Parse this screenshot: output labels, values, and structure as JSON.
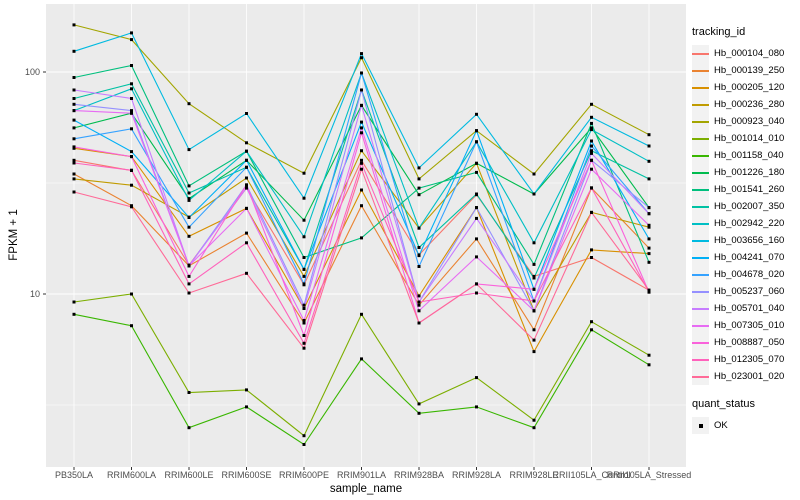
{
  "chart": {
    "y_axis_title": "FPKM + 1",
    "x_axis_title": "sample_name",
    "legend_title": "tracking_id",
    "point_legend_title": "quant_status",
    "point_legend_label": "OK",
    "panel_bg": "#EBEBEB",
    "grid_color": "#FFFFFF",
    "tick_label_color": "#4D4D4D",
    "point_color": "#000000"
  },
  "chart_data": {
    "type": "line",
    "y_scale": "log10",
    "title": "",
    "xlabel": "sample_name",
    "ylabel": "FPKM + 1",
    "y_ticks": [
      100,
      10
    ],
    "ylim": [
      1.7,
      200
    ],
    "grid": "major-and-minor",
    "legend_position": "right",
    "legend_title": "tracking_id",
    "point_legend": {
      "title": "quant_status",
      "label": "OK",
      "marker": "black-square"
    },
    "categories": [
      "PB350LA",
      "RRIM600LA",
      "RRIM600LE",
      "RRIM600SE",
      "RRIM600PE",
      "RRIM901LA",
      "RRIM928BA",
      "RRIM928LA",
      "RRIM928LE",
      "RRII105LA_Control",
      "RRII105LA_Stressed"
    ],
    "series": [
      {
        "name": "Hb_000104_080",
        "color": "#F8766D",
        "values": [
          40,
          36,
          13.5,
          30,
          11,
          40,
          15,
          28,
          12,
          14.6,
          10.4
        ]
      },
      {
        "name": "Hb_000139_250",
        "color": "#EA8331",
        "values": [
          34.7,
          25,
          13.4,
          18.8,
          7.4,
          25,
          8.9,
          17.7,
          6.9,
          30,
          16.1
        ]
      },
      {
        "name": "Hb_000205_120",
        "color": "#D89000",
        "values": [
          45.3,
          41.6,
          18.2,
          24.3,
          8.6,
          29.4,
          9.8,
          24.5,
          5.5,
          15.8,
          15.2
        ]
      },
      {
        "name": "Hb_000236_280",
        "color": "#C09B00",
        "values": [
          33,
          30.9,
          22.2,
          33.3,
          12,
          44.2,
          19.8,
          38.8,
          8.4,
          23.3,
          20
        ]
      },
      {
        "name": "Hb_000923_040",
        "color": "#A3A500",
        "values": [
          163,
          140,
          72,
          48,
          35,
          116,
          33,
          54.4,
          34.7,
          71.5,
          52.2
        ]
      },
      {
        "name": "Hb_001014_010",
        "color": "#7CAE00",
        "values": [
          9.2,
          10,
          3.6,
          3.7,
          2.3,
          8.1,
          3.2,
          4.2,
          2.7,
          7.5,
          5.3
        ]
      },
      {
        "name": "Hb_001158_040",
        "color": "#39B600",
        "values": [
          8.1,
          7.2,
          2.5,
          3.1,
          2.1,
          5.1,
          2.9,
          3.1,
          2.5,
          6.9,
          4.8
        ]
      },
      {
        "name": "Hb_001226_180",
        "color": "#00BB4E",
        "values": [
          56,
          65.2,
          26.9,
          40,
          21.5,
          70.7,
          28,
          38.8,
          28.2,
          56,
          24.5
        ]
      },
      {
        "name": "Hb_001541_260",
        "color": "#00BF7D",
        "values": [
          94.5,
          107,
          30.7,
          44,
          14.6,
          17.9,
          30,
          35.3,
          13.6,
          58.7,
          13.9
        ]
      },
      {
        "name": "Hb_002007_350",
        "color": "#00C1A3",
        "values": [
          76,
          88.5,
          28.5,
          37.2,
          12.9,
          83,
          16.2,
          28.2,
          11.8,
          44.2,
          33
        ]
      },
      {
        "name": "Hb_002942_220",
        "color": "#00BFC4",
        "values": [
          67,
          84,
          26.4,
          44,
          18.1,
          99,
          19.8,
          48.5,
          17,
          55,
          39.6
        ]
      },
      {
        "name": "Hb_003656_160",
        "color": "#00BAE0",
        "values": [
          124,
          150,
          44.7,
          65,
          27,
          121,
          37,
          64.5,
          28.2,
          62.5,
          46.4
        ]
      },
      {
        "name": "Hb_004241_070",
        "color": "#00B0F6",
        "values": [
          60.7,
          43.8,
          22.1,
          40,
          12.9,
          59.5,
          14.9,
          54.4,
          10.5,
          48.9,
          17.7
        ]
      },
      {
        "name": "Hb_004678_020",
        "color": "#35A2FF",
        "values": [
          50,
          55.5,
          20,
          37.2,
          11.1,
          99,
          13.3,
          48.5,
          9.3,
          46.4,
          23
        ]
      },
      {
        "name": "Hb_005237_060",
        "color": "#9590FF",
        "values": [
          71.5,
          67,
          13.4,
          31,
          8.9,
          83,
          9.2,
          24.5,
          8.4,
          40,
          24.5
        ]
      },
      {
        "name": "Hb_005701_040",
        "color": "#C77CFF",
        "values": [
          83,
          76,
          13.4,
          30.1,
          8.6,
          70.7,
          9.2,
          21.9,
          9.3,
          43,
          23
        ]
      },
      {
        "name": "Hb_007305_010",
        "color": "#E76BF3",
        "values": [
          67,
          65.2,
          13.4,
          24.3,
          7.6,
          56,
          8.4,
          14.7,
          8.4,
          36.5,
          20.4
        ]
      },
      {
        "name": "Hb_008887_050",
        "color": "#FA62DB",
        "values": [
          46,
          41.6,
          12,
          31,
          6.5,
          53.2,
          7.4,
          11.1,
          10.5,
          40,
          10.2
        ]
      },
      {
        "name": "Hb_012305_070",
        "color": "#FF62BC",
        "values": [
          38.9,
          36.1,
          11.1,
          17,
          6,
          38.8,
          9.2,
          10.1,
          9.3,
          30.1,
          10.2
        ]
      },
      {
        "name": "Hb_023001_020",
        "color": "#FF6A98",
        "values": [
          28.8,
          24.7,
          10.1,
          12.4,
          5.7,
          36.5,
          7.4,
          11.1,
          6.2,
          23.3,
          10.4
        ]
      }
    ]
  }
}
